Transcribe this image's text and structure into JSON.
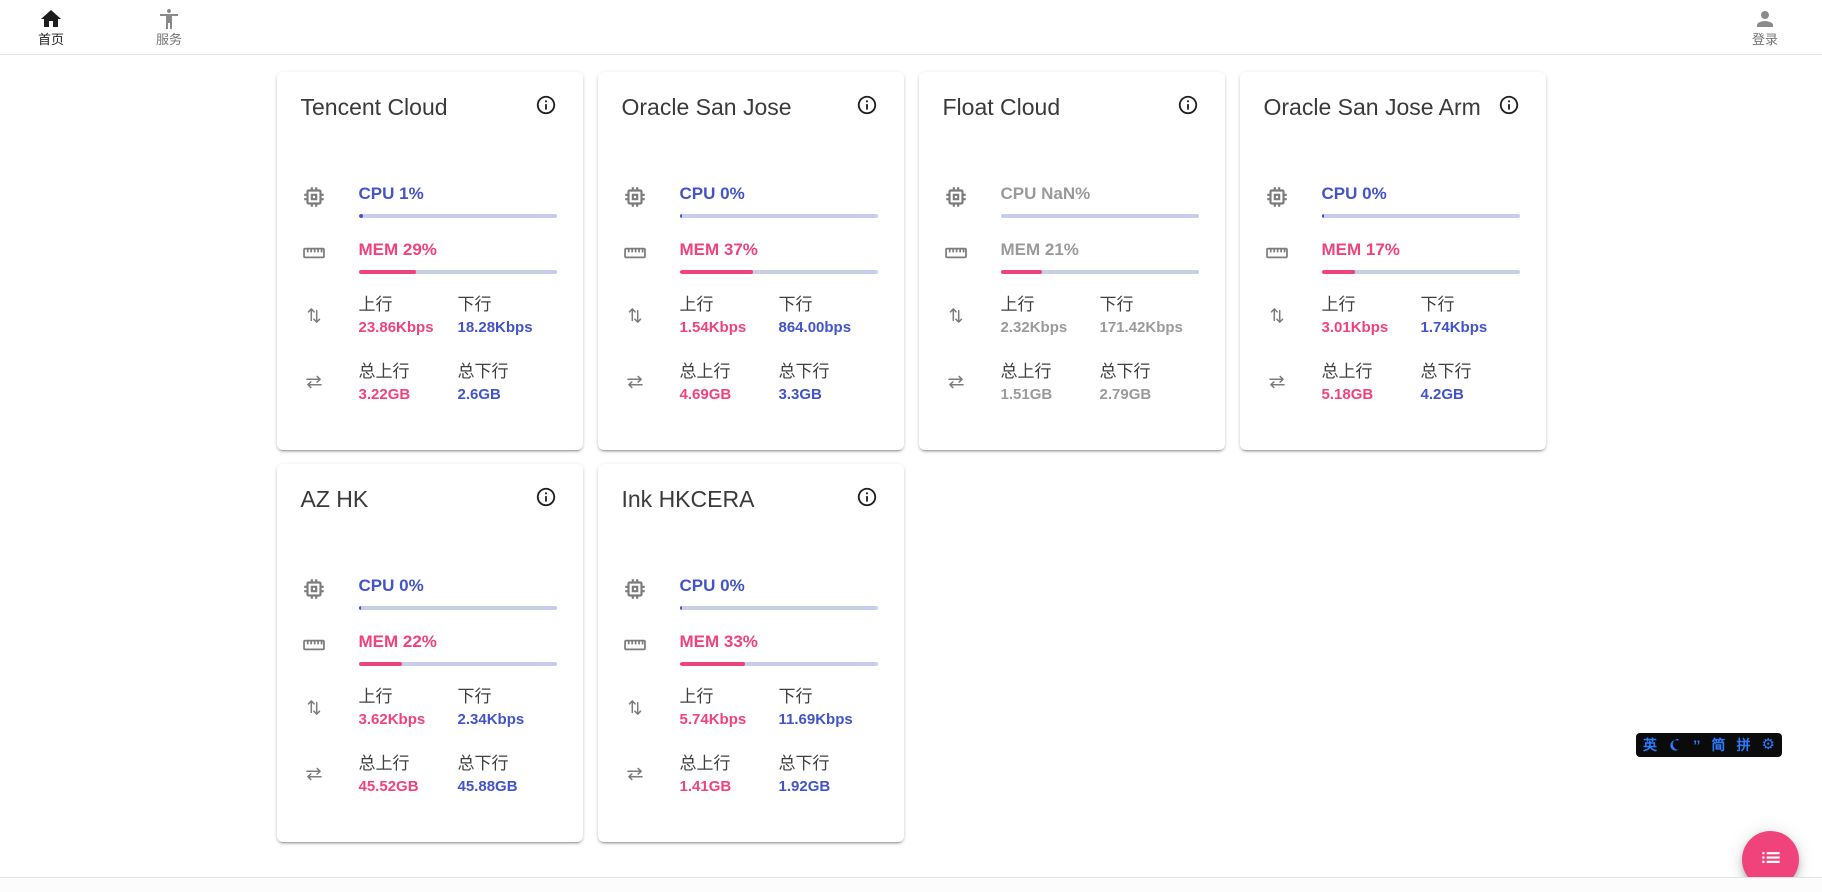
{
  "nav": {
    "home": "首页",
    "service": "服务",
    "login": "登录"
  },
  "card_labels": {
    "upload": "上行",
    "download": "下行",
    "total_upload": "总上行",
    "total_download": "总下行"
  },
  "colors": {
    "accent_blue": "#4353c9",
    "accent_pink": "#f0437c",
    "offline_gray": "#9a9a9a",
    "bar_track": "#c8cdee",
    "ime_blue": "#2b7bff",
    "fab_pink": "#f0437c"
  },
  "cards": [
    {
      "name": "Tencent Cloud",
      "online": true,
      "cpu_label": "CPU 1%",
      "cpu_pct": 1,
      "cpu_bar_pct": 2.5,
      "mem_label": "MEM 29%",
      "mem_pct": 29,
      "upload_speed": "23.86Kbps",
      "download_speed": "18.28Kbps",
      "total_upload": "3.22GB",
      "total_download": "2.6GB"
    },
    {
      "name": "Oracle San Jose",
      "online": true,
      "cpu_label": "CPU 0%",
      "cpu_pct": 0,
      "cpu_bar_pct": 1.5,
      "mem_label": "MEM 37%",
      "mem_pct": 37,
      "upload_speed": "1.54Kbps",
      "download_speed": "864.00bps",
      "total_upload": "4.69GB",
      "total_download": "3.3GB"
    },
    {
      "name": "Float Cloud",
      "online": false,
      "cpu_label": "CPU NaN%",
      "cpu_pct": null,
      "cpu_bar_pct": 0,
      "mem_label": "MEM 21%",
      "mem_pct": 21,
      "upload_speed": "2.32Kbps",
      "download_speed": "171.42Kbps",
      "total_upload": "1.51GB",
      "total_download": "2.79GB"
    },
    {
      "name": "Oracle San Jose Arm",
      "online": true,
      "cpu_label": "CPU 0%",
      "cpu_pct": 0,
      "cpu_bar_pct": 1.5,
      "mem_label": "MEM 17%",
      "mem_pct": 17,
      "upload_speed": "3.01Kbps",
      "download_speed": "1.74Kbps",
      "total_upload": "5.18GB",
      "total_download": "4.2GB"
    },
    {
      "name": "AZ HK",
      "online": true,
      "cpu_label": "CPU 0%",
      "cpu_pct": 0,
      "cpu_bar_pct": 1.5,
      "mem_label": "MEM 22%",
      "mem_pct": 22,
      "upload_speed": "3.62Kbps",
      "download_speed": "2.34Kbps",
      "total_upload": "45.52GB",
      "total_download": "45.88GB"
    },
    {
      "name": "Ink HKCERA",
      "online": true,
      "cpu_label": "CPU 0%",
      "cpu_pct": 0,
      "cpu_bar_pct": 1.5,
      "mem_label": "MEM 33%",
      "mem_pct": 33,
      "upload_speed": "5.74Kbps",
      "download_speed": "11.69Kbps",
      "total_upload": "1.41GB",
      "total_download": "1.92GB"
    }
  ],
  "ime": {
    "english": "英",
    "punctuation": "’’",
    "simplified": "简",
    "pinyin": "拼",
    "settings_gear": "⚙"
  }
}
